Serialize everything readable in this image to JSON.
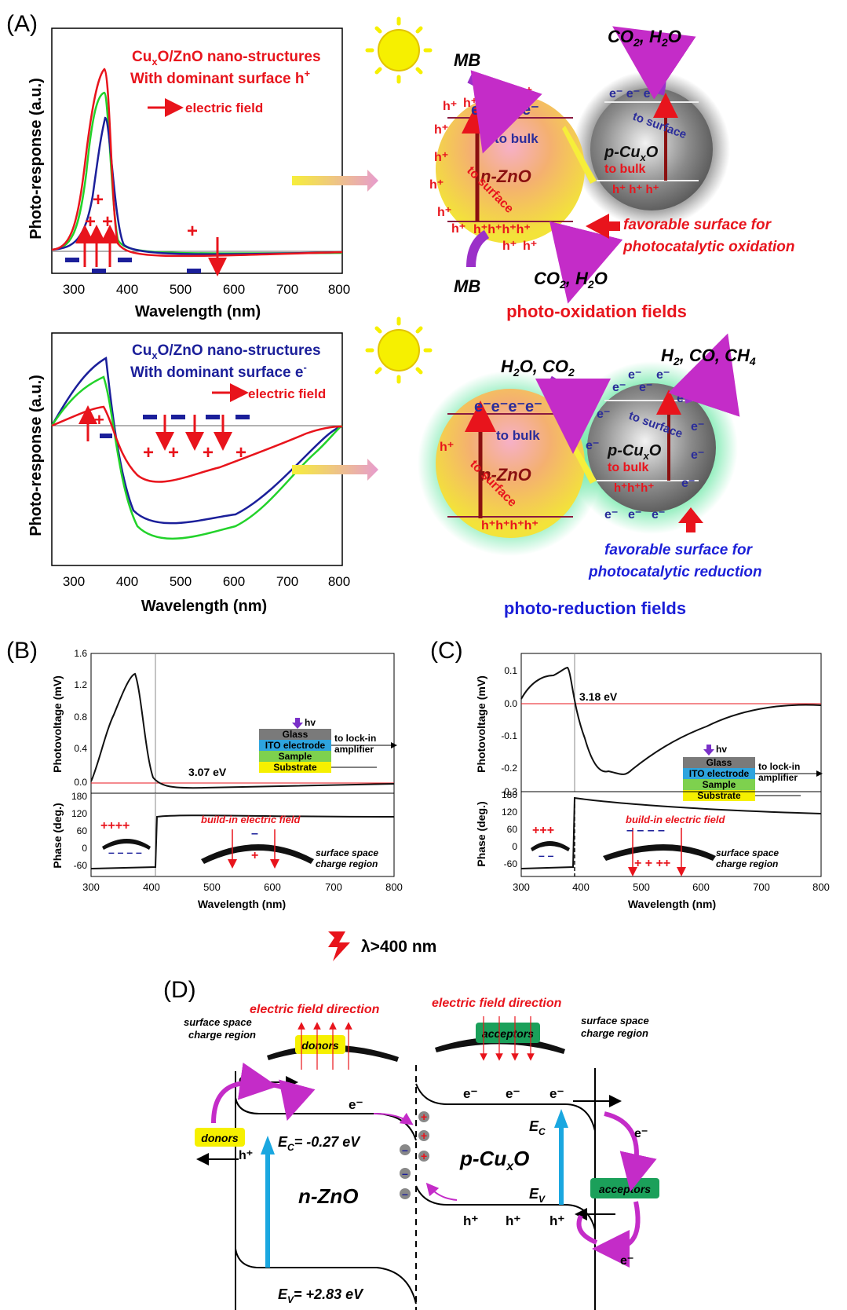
{
  "panelA": {
    "label": "(A)",
    "top": {
      "title_line1": "Cu",
      "title_sub": "x",
      "title_line1b": "O/ZnO nano-structures",
      "title_line2": "With dominant surface h",
      "title_line2_sup": "+",
      "legend_field": "electric field",
      "ylabel": "Photo-response (a.u.)",
      "xlabel": "Wavelength (nm)",
      "xticks": [
        "300",
        "400",
        "500",
        "600",
        "700",
        "800"
      ]
    },
    "bottom": {
      "title_line1": "Cu",
      "title_sub": "x",
      "title_line1b": "O/ZnO nano-structures",
      "title_line2": "With dominant surface e",
      "title_line2_sup": "-",
      "legend_field": "electric field",
      "ylabel": "Photo-response (a.u.)",
      "xlabel": "Wavelength (nm)",
      "xticks": [
        "300",
        "400",
        "500",
        "600",
        "700",
        "800"
      ]
    },
    "oxidation": {
      "mb_top": "MB",
      "mb_bottom": "MB",
      "co2_top": "CO",
      "co2_bottom": "CO",
      "h2o": "H",
      "zno": "n-ZnO",
      "cuxo": "p-Cu",
      "to_bulk_left": "to bulk",
      "to_surface_left": "to surface",
      "to_surface_right": "to surface",
      "to_bulk_right": "to bulk",
      "favorable1": "favorable surface for",
      "favorable2": "photocatalytic oxidation",
      "caption": "photo-oxidation fields"
    },
    "reduction": {
      "h2o_co2": "H",
      "products": "H",
      "zno": "n-ZnO",
      "cuxo": "p-Cu",
      "to_bulk_left": "to bulk",
      "to_surface_left": "to surface",
      "to_surface_right": "to surface",
      "to_bulk_right": "to bulk",
      "favorable1": "favorable surface for",
      "favorable2": "photocatalytic reduction",
      "caption": "photo-reduction fields"
    }
  },
  "panelB": {
    "label": "(B)",
    "ylabel_top": "Photovoltage (mV)",
    "ylabel_bottom": "Phase (deg.)",
    "xlabel": "Wavelength (nm)",
    "yticks_top": [
      "1.6",
      "1.2",
      "0.8",
      "0.4",
      "0.0"
    ],
    "yticks_bottom": [
      "180",
      "120",
      "60",
      "0",
      "-60"
    ],
    "xticks": [
      "300",
      "400",
      "500",
      "600",
      "700",
      "800"
    ],
    "edge_label": "3.07 eV",
    "inset": {
      "hv": "hv",
      "glass": "Glass",
      "ito": "ITO electrode",
      "sample": "Sample",
      "substrate": "Substrate",
      "lockin1": "to lock-in",
      "lockin2": "amplifier"
    },
    "field_label": "build-in electric field",
    "region1": "surface space",
    "region2": "charge region"
  },
  "panelC": {
    "label": "(C)",
    "ylabel_top": "Photovoltage (mV)",
    "ylabel_bottom": "Phase (deg.)",
    "xlabel": "Wavelength (nm)",
    "yticks_top": [
      "0.1",
      "0.0",
      "-0.1",
      "-0.2",
      "-0.3"
    ],
    "yticks_bottom": [
      "180",
      "120",
      "60",
      "0",
      "-60"
    ],
    "xticks": [
      "300",
      "400",
      "500",
      "600",
      "700",
      "800"
    ],
    "edge_label": "3.18 eV",
    "inset": {
      "hv": "hv",
      "glass": "Glass",
      "ito": "ITO electrode",
      "sample": "Sample",
      "substrate": "Substrate",
      "lockin1": "to lock-in",
      "lockin2": "amplifier"
    },
    "field_label": "build-in electric field",
    "region1": "surface space",
    "region2": "charge region"
  },
  "panelD": {
    "label": "(D)",
    "lambda": "λ>400 nm",
    "field_dir_left": "electric field direction",
    "field_dir_right": "electric field direction",
    "ssc_left1": "surface space",
    "ssc_left2": "charge region",
    "ssc_right1": "surface space",
    "ssc_right2": "charge region",
    "donors_top": "donors",
    "acceptors_top": "acceptors",
    "donors_side": "donors",
    "acceptors_side": "acceptors",
    "zno": "n-ZnO",
    "cuxo": "p-Cu",
    "ec_left": "= -0.27 eV",
    "ev_left": "= +2.83 eV",
    "ec_right": "E",
    "ev_right": "E"
  },
  "colors": {
    "red": "#e8141c",
    "blue": "#1b1f9a",
    "green": "#22d22a",
    "purple": "#9b30c8",
    "yellow": "#f6f000",
    "teal": "#1aa7e0"
  }
}
